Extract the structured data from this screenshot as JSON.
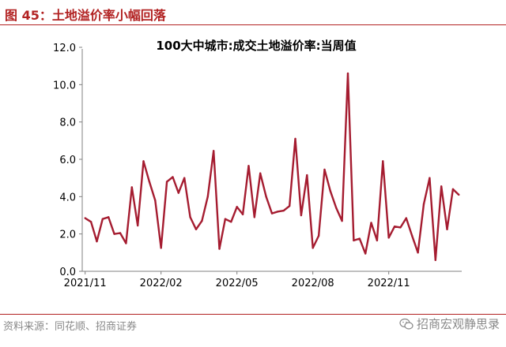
{
  "header": {
    "figure_title": "图 45：土地溢价率小幅回落"
  },
  "footer": {
    "source": "资料来源：同花顺、招商证券",
    "watermark": "招商宏观静思录"
  },
  "colors": {
    "series": "#a51c30",
    "header": "#b22222",
    "axis": "#808080"
  },
  "chart_data": {
    "type": "line",
    "title": "100大中城市:成交土地溢价率:当周值",
    "xlabel": "",
    "ylabel": "",
    "ylim": [
      0,
      12
    ],
    "yticks": [
      0,
      2,
      4,
      6,
      8,
      10,
      12
    ],
    "ytick_labels": [
      "0.0",
      "2.0",
      "4.0",
      "6.0",
      "8.0",
      "10.0",
      "12.0"
    ],
    "xtick_labels": [
      "2021/11",
      "2022/02",
      "2022/05",
      "2022/08",
      "2022/11"
    ],
    "xtick_index": [
      0,
      13,
      26,
      39,
      52
    ],
    "grid": false,
    "legend": "none",
    "series": [
      {
        "values": [
          2.85,
          2.65,
          1.6,
          2.8,
          2.9,
          2.0,
          2.05,
          1.5,
          4.5,
          2.45,
          5.9,
          4.8,
          3.8,
          1.25,
          4.8,
          5.05,
          4.2,
          5.0,
          2.9,
          2.25,
          2.7,
          4.0,
          6.45,
          1.2,
          2.8,
          2.65,
          3.45,
          3.05,
          5.65,
          2.9,
          5.25,
          4.0,
          3.1,
          3.2,
          3.25,
          3.5,
          7.1,
          3.0,
          5.15,
          1.25,
          1.9,
          5.45,
          4.3,
          3.4,
          2.7,
          10.6,
          1.65,
          1.75,
          0.95,
          2.6,
          1.65,
          5.9,
          1.8,
          2.4,
          2.35,
          2.85,
          1.9,
          1.0,
          3.6,
          5.0,
          0.6,
          4.55,
          2.25,
          4.4,
          4.1
        ]
      }
    ]
  }
}
